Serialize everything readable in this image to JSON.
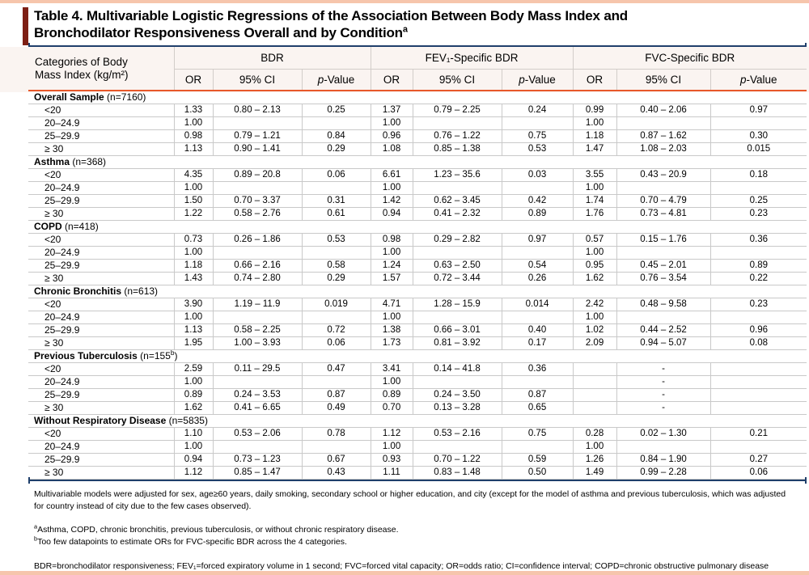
{
  "page": {
    "title_line1": "Table 4. Multivariable Logistic Regressions of the Association Between Body Mass Index and",
    "title_line2": "Bronchodilator Responsiveness Overall and by Condition",
    "title_sup": "a",
    "colors": {
      "salmon": "#f6c5ac",
      "maroon": "#7e1f14",
      "navy": "#1f3f6b",
      "orange": "#e8582a",
      "header_bg": "#faf4f1",
      "grid": "#c9c9c9"
    }
  },
  "header": {
    "category_line1": "Categories of Body",
    "category_line2": "Mass Index (kg/m²)",
    "groups": [
      "BDR",
      "FEV₁-Specific BDR",
      "FVC-Specific BDR"
    ],
    "sub": {
      "or": "OR",
      "ci": "95% CI",
      "p_italic": "p",
      "p_rest": "-Value"
    }
  },
  "sections": [
    {
      "name": "Overall Sample",
      "n_pre": "(n=7160)",
      "n_sup": "",
      "n_post": "",
      "rows": [
        {
          "category": "<20",
          "cells": [
            "1.33",
            "0.80 – 2.13",
            "0.25",
            "1.37",
            "0.79 – 2.25",
            "0.24",
            "0.99",
            "0.40 – 2.06",
            "0.97"
          ]
        },
        {
          "category": "20–24.9",
          "cells": [
            "1.00",
            "",
            "",
            "1.00",
            "",
            "",
            "1.00",
            "",
            ""
          ]
        },
        {
          "category": "25–29.9",
          "cells": [
            "0.98",
            "0.79 – 1.21",
            "0.84",
            "0.96",
            "0.76 – 1.22",
            "0.75",
            "1.18",
            "0.87 – 1.62",
            "0.30"
          ]
        },
        {
          "category": "≥ 30",
          "cells": [
            "1.13",
            "0.90 – 1.41",
            "0.29",
            "1.08",
            "0.85 – 1.38",
            "0.53",
            "1.47",
            "1.08 – 2.03",
            "0.015"
          ]
        }
      ]
    },
    {
      "name": "Asthma",
      "n_pre": "(n=368)",
      "n_sup": "",
      "n_post": "",
      "rows": [
        {
          "category": "<20",
          "cells": [
            "4.35",
            "0.89 – 20.8",
            "0.06",
            "6.61",
            "1.23 – 35.6",
            "0.03",
            "3.55",
            "0.43 – 20.9",
            "0.18"
          ]
        },
        {
          "category": "20–24.9",
          "cells": [
            "1.00",
            "",
            "",
            "1.00",
            "",
            "",
            "1.00",
            "",
            ""
          ]
        },
        {
          "category": "25–29.9",
          "cells": [
            "1.50",
            "0.70 – 3.37",
            "0.31",
            "1.42",
            "0.62 – 3.45",
            "0.42",
            "1.74",
            "0.70 – 4.79",
            "0.25"
          ]
        },
        {
          "category": "≥ 30",
          "cells": [
            "1.22",
            "0.58 – 2.76",
            "0.61",
            "0.94",
            "0.41 – 2.32",
            "0.89",
            "1.76",
            "0.73 – 4.81",
            "0.23"
          ]
        }
      ]
    },
    {
      "name": "COPD",
      "n_pre": "(n=418)",
      "n_sup": "",
      "n_post": "",
      "rows": [
        {
          "category": "<20",
          "cells": [
            "0.73",
            "0.26 – 1.86",
            "0.53",
            "0.98",
            "0.29 – 2.82",
            "0.97",
            "0.57",
            "0.15 – 1.76",
            "0.36"
          ]
        },
        {
          "category": "20–24.9",
          "cells": [
            "1.00",
            "",
            "",
            "1.00",
            "",
            "",
            "1.00",
            "",
            ""
          ]
        },
        {
          "category": "25–29.9",
          "cells": [
            "1.18",
            "0.66 – 2.16",
            "0.58",
            "1.24",
            "0.63 – 2.50",
            "0.54",
            "0.95",
            "0.45 – 2.01",
            "0.89"
          ]
        },
        {
          "category": "≥ 30",
          "cells": [
            "1.43",
            "0.74 – 2.80",
            "0.29",
            "1.57",
            "0.72 – 3.44",
            "0.26",
            "1.62",
            "0.76 – 3.54",
            "0.22"
          ]
        }
      ]
    },
    {
      "name": "Chronic Bronchitis",
      "n_pre": "(n=613)",
      "n_sup": "",
      "n_post": "",
      "rows": [
        {
          "category": "<20",
          "cells": [
            "3.90",
            "1.19 – 11.9",
            "0.019",
            "4.71",
            "1.28 – 15.9",
            "0.014",
            "2.42",
            "0.48 – 9.58",
            "0.23"
          ]
        },
        {
          "category": "20–24.9",
          "cells": [
            "1.00",
            "",
            "",
            "1.00",
            "",
            "",
            "1.00",
            "",
            ""
          ]
        },
        {
          "category": "25–29.9",
          "cells": [
            "1.13",
            "0.58 – 2.25",
            "0.72",
            "1.38",
            "0.66 – 3.01",
            "0.40",
            "1.02",
            "0.44 – 2.52",
            "0.96"
          ]
        },
        {
          "category": "≥ 30",
          "cells": [
            "1.95",
            "1.00 – 3.93",
            "0.06",
            "1.73",
            "0.81 – 3.92",
            "0.17",
            "2.09",
            "0.94 – 5.07",
            "0.08"
          ]
        }
      ]
    },
    {
      "name": "Previous Tuberculosis",
      "n_pre": "(n=155",
      "n_sup": "b",
      "n_post": ")",
      "rows": [
        {
          "category": "<20",
          "cells": [
            "2.59",
            "0.11 – 29.5",
            "0.47",
            "3.41",
            "0.14 – 41.8",
            "0.36",
            "",
            "-",
            ""
          ]
        },
        {
          "category": "20–24.9",
          "cells": [
            "1.00",
            "",
            "",
            "1.00",
            "",
            "",
            "",
            "-",
            ""
          ]
        },
        {
          "category": "25–29.9",
          "cells": [
            "0.89",
            "0.24 – 3.53",
            "0.87",
            "0.89",
            "0.24 – 3.50",
            "0.87",
            "",
            "-",
            ""
          ]
        },
        {
          "category": "≥ 30",
          "cells": [
            "1.62",
            "0.41 – 6.65",
            "0.49",
            "0.70",
            "0.13 – 3.28",
            "0.65",
            "",
            "-",
            ""
          ]
        }
      ]
    },
    {
      "name": "Without Respiratory Disease",
      "n_pre": "(n=5835)",
      "n_sup": "",
      "n_post": "",
      "rows": [
        {
          "category": "<20",
          "cells": [
            "1.10",
            "0.53 – 2.06",
            "0.78",
            "1.12",
            "0.53 – 2.16",
            "0.75",
            "0.28",
            "0.02 – 1.30",
            "0.21"
          ]
        },
        {
          "category": "20–24.9",
          "cells": [
            "1.00",
            "",
            "",
            "1.00",
            "",
            "",
            "1.00",
            "",
            ""
          ]
        },
        {
          "category": "25–29.9",
          "cells": [
            "0.94",
            "0.73 – 1.23",
            "0.67",
            "0.93",
            "0.70 – 1.22",
            "0.59",
            "1.26",
            "0.84 – 1.90",
            "0.27"
          ]
        },
        {
          "category": "≥ 30",
          "cells": [
            "1.12",
            "0.85 – 1.47",
            "0.43",
            "1.11",
            "0.83 – 1.48",
            "0.50",
            "1.49",
            "0.99 – 2.28",
            "0.06"
          ]
        }
      ]
    }
  ],
  "footnotes": {
    "adjustment": "Multivariable models were adjusted for sex, age≥60 years, daily smoking, secondary school or higher education, and city (except for the model of asthma and previous tuberculosis, which was adjusted for country instead of city due to the few cases observed).",
    "a_marker": "a",
    "a_text": "Asthma, COPD, chronic bronchitis, previous tuberculosis, or without chronic respiratory disease.",
    "b_marker": "b",
    "b_text": "Too few datapoints to estimate ORs for FVC-specific BDR across the 4 categories.",
    "abbreviations": "BDR=bronchodilator responsiveness; FEV₁=forced expiratory volume in 1 second; FVC=forced vital capacity; OR=odds ratio; CI=confidence interval; COPD=chronic obstructive pulmonary disease"
  }
}
